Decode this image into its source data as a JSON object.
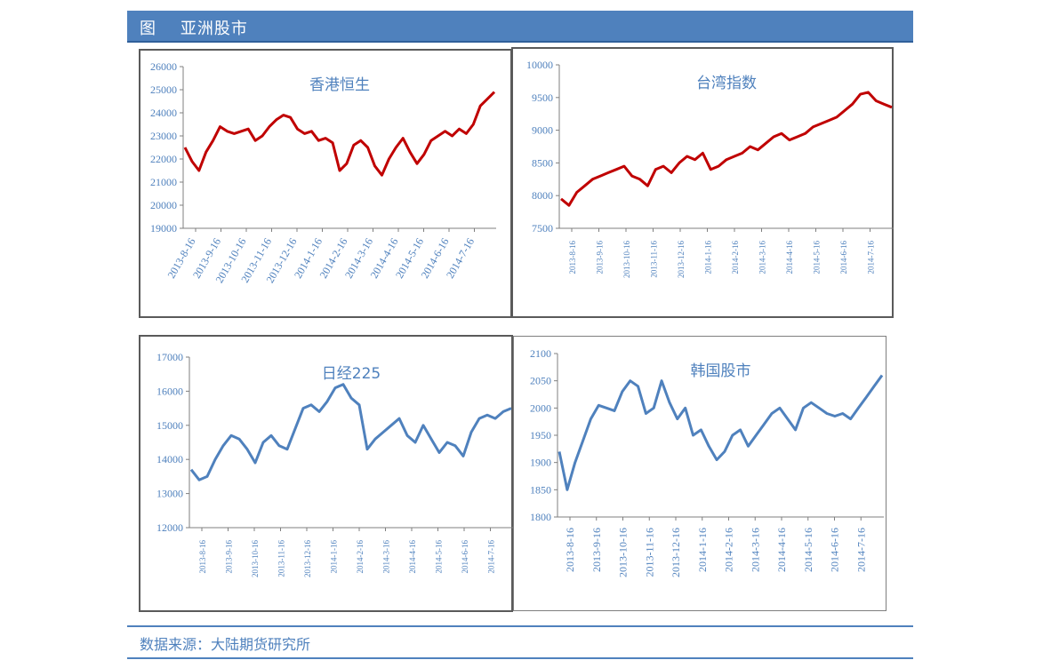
{
  "header": {
    "title": "图    亚洲股市"
  },
  "footer": {
    "source": "数据来源：大陆期货研究所"
  },
  "chart_data": [
    {
      "type": "line",
      "title": "香港恒生",
      "color": "#c00000",
      "ylim": [
        19000,
        26000
      ],
      "yticks": [
        19000,
        20000,
        21000,
        22000,
        23000,
        24000,
        25000,
        26000
      ],
      "xlabels": [
        "2013-8-16",
        "2013-9-16",
        "2013-10-16",
        "2013-11-16",
        "2013-12-16",
        "2014-1-16",
        "2014-2-16",
        "2014-3-16",
        "2014-4-16",
        "2014-5-16",
        "2014-6-16",
        "2014-7-16"
      ],
      "series": [
        {
          "values": [
            22500,
            21900,
            21500,
            22300,
            22800,
            23400,
            23200,
            23100,
            23200,
            23300,
            22800,
            23000,
            23400,
            23700,
            23900,
            23800,
            23300,
            23100,
            23200,
            22800,
            22900,
            22700,
            21500,
            21800,
            22600,
            22800,
            22500,
            21700,
            21300,
            22000,
            22500,
            22900,
            22300,
            21800,
            22200,
            22800,
            23000,
            23200,
            23000,
            23300,
            23100,
            23500,
            24300,
            24600,
            24900
          ]
        }
      ]
    },
    {
      "type": "line",
      "title": "台湾指数",
      "color": "#c00000",
      "ylim": [
        7500,
        10000
      ],
      "yticks": [
        7500,
        8000,
        8500,
        9000,
        9500,
        10000
      ],
      "xlabels": [
        "2013-8-16",
        "2013-9-16",
        "2013-10-16",
        "2013-11-16",
        "2013-12-16",
        "2014-1-16",
        "2014-2-16",
        "2014-3-16",
        "2014-4-16",
        "2014-5-16",
        "2014-6-16",
        "2014-7-16"
      ],
      "series": [
        {
          "values": [
            7950,
            7850,
            8050,
            8150,
            8250,
            8300,
            8350,
            8400,
            8450,
            8300,
            8250,
            8150,
            8400,
            8450,
            8350,
            8500,
            8600,
            8550,
            8650,
            8400,
            8450,
            8550,
            8600,
            8650,
            8750,
            8700,
            8800,
            8900,
            8950,
            8850,
            8900,
            8950,
            9050,
            9100,
            9150,
            9200,
            9300,
            9400,
            9550,
            9580,
            9450,
            9400,
            9350
          ]
        }
      ]
    },
    {
      "type": "line",
      "title": "日经225",
      "color": "#4f81bd",
      "ylim": [
        12000,
        17000
      ],
      "yticks": [
        12000,
        13000,
        14000,
        15000,
        16000,
        17000
      ],
      "xlabels": [
        "2013-8-16",
        "2013-9-16",
        "2013-10-16",
        "2013-11-16",
        "2013-12-16",
        "2014-1-16",
        "2014-2-16",
        "2014-3-16",
        "2014-4-16",
        "2014-5-16",
        "2014-6-16",
        "2014-7-16"
      ],
      "series": [
        {
          "values": [
            13700,
            13400,
            13500,
            14000,
            14400,
            14700,
            14600,
            14300,
            13900,
            14500,
            14700,
            14400,
            14300,
            14900,
            15500,
            15600,
            15400,
            15700,
            16100,
            16200,
            15800,
            15600,
            14300,
            14600,
            14800,
            15000,
            15200,
            14700,
            14500,
            15000,
            14600,
            14200,
            14500,
            14400,
            14100,
            14800,
            15200,
            15300,
            15200,
            15400,
            15500
          ]
        }
      ]
    },
    {
      "type": "line",
      "title": "韩国股市",
      "color": "#4f81bd",
      "ylim": [
        1800,
        2100
      ],
      "yticks": [
        1800,
        1850,
        1900,
        1950,
        2000,
        2050,
        2100
      ],
      "xlabels": [
        "2013-8-16",
        "2013-9-16",
        "2013-10-16",
        "2013-11-16",
        "2013-12-16",
        "2014-1-16",
        "2014-2-16",
        "2014-3-16",
        "2014-4-16",
        "2014-5-16",
        "2014-6-16",
        "2014-7-16"
      ],
      "series": [
        {
          "values": [
            1920,
            1850,
            1900,
            1940,
            1980,
            2005,
            2000,
            1995,
            2030,
            2050,
            2040,
            1990,
            2000,
            2050,
            2010,
            1980,
            2000,
            1950,
            1960,
            1930,
            1905,
            1920,
            1950,
            1960,
            1930,
            1950,
            1970,
            1990,
            2000,
            1980,
            1960,
            2000,
            2010,
            2000,
            1990,
            1985,
            1990,
            1980,
            2000,
            2020,
            2040,
            2060
          ]
        }
      ]
    }
  ]
}
